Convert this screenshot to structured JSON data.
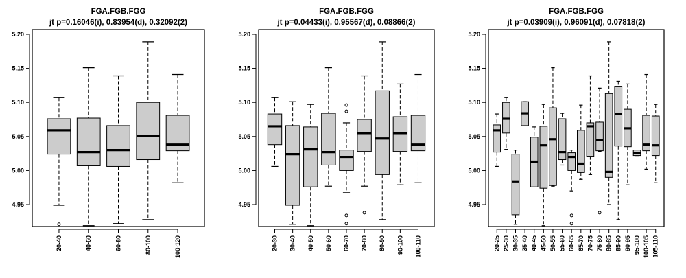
{
  "chart_data": [
    {
      "type": "box",
      "title": "FGA.FGB.FGG",
      "subtitle": "jt p=0.16046(i), 0.83954(d), 0.32092(2)",
      "ylim": [
        4.91,
        5.2
      ],
      "yticks": [
        4.95,
        5.0,
        5.05,
        5.1,
        5.15,
        5.2
      ],
      "ytick_labels": [
        "4.95",
        "5.00",
        "5.05",
        "5.10",
        "5.15",
        "5.20"
      ],
      "categories": [
        "20-40",
        "40-60",
        "60-80",
        "80-100",
        "100-120"
      ],
      "boxes": [
        {
          "whislo": 4.949,
          "q1": 5.024,
          "med": 5.059,
          "q3": 5.076,
          "whishi": 5.107,
          "fliers": [
            4.921
          ]
        },
        {
          "whislo": 4.919,
          "q1": 5.007,
          "med": 5.027,
          "q3": 5.077,
          "whishi": 5.151,
          "fliers": []
        },
        {
          "whislo": 4.922,
          "q1": 5.006,
          "med": 5.03,
          "q3": 5.066,
          "whishi": 5.139,
          "fliers": []
        },
        {
          "whislo": 4.928,
          "q1": 5.016,
          "med": 5.051,
          "q3": 5.1,
          "whishi": 5.189,
          "fliers": []
        },
        {
          "whislo": 4.982,
          "q1": 5.029,
          "med": 5.038,
          "q3": 5.081,
          "whishi": 5.141,
          "fliers": []
        }
      ]
    },
    {
      "type": "box",
      "title": "FGA.FGB.FGG",
      "subtitle": "jt p=0.04433(i), 0.95567(d), 0.08866(2)",
      "ylim": [
        4.91,
        5.2
      ],
      "yticks": [
        4.95,
        5.0,
        5.05,
        5.1,
        5.15,
        5.2
      ],
      "ytick_labels": [
        "4.95",
        "5.00",
        "5.05",
        "5.10",
        "5.15",
        "5.20"
      ],
      "categories": [
        "20-30",
        "30-40",
        "40-50",
        "50-60",
        "60-70",
        "70-80",
        "80-90",
        "90-100",
        "100-110"
      ],
      "boxes": [
        {
          "whislo": 5.006,
          "q1": 5.038,
          "med": 5.065,
          "q3": 5.083,
          "whishi": 5.107,
          "fliers": []
        },
        {
          "whislo": 4.921,
          "q1": 4.949,
          "med": 5.024,
          "q3": 5.066,
          "whishi": 5.101,
          "fliers": []
        },
        {
          "whislo": 4.919,
          "q1": 4.976,
          "med": 5.031,
          "q3": 5.064,
          "whishi": 5.097,
          "fliers": []
        },
        {
          "whislo": 4.977,
          "q1": 5.008,
          "med": 5.027,
          "q3": 5.084,
          "whishi": 5.151,
          "fliers": []
        },
        {
          "whislo": 4.968,
          "q1": 5.0,
          "med": 5.02,
          "q3": 5.03,
          "whishi": 5.07,
          "fliers": [
            5.096,
            5.087,
            4.934,
            4.922
          ]
        },
        {
          "whislo": 4.977,
          "q1": 5.028,
          "med": 5.055,
          "q3": 5.075,
          "whishi": 5.139,
          "fliers": [
            4.938
          ]
        },
        {
          "whislo": 4.928,
          "q1": 4.994,
          "med": 5.047,
          "q3": 5.117,
          "whishi": 5.189,
          "fliers": []
        },
        {
          "whislo": 4.979,
          "q1": 5.028,
          "med": 5.055,
          "q3": 5.079,
          "whishi": 5.127,
          "fliers": []
        },
        {
          "whislo": 4.982,
          "q1": 5.029,
          "med": 5.038,
          "q3": 5.081,
          "whishi": 5.141,
          "fliers": []
        }
      ]
    },
    {
      "type": "box",
      "title": "FGA.FGB.FGG",
      "subtitle": "jt p=0.03909(i), 0.96091(d), 0.07818(2)",
      "ylim": [
        4.91,
        5.2
      ],
      "yticks": [
        4.95,
        5.0,
        5.05,
        5.1,
        5.15,
        5.2
      ],
      "ytick_labels": [
        "4.95",
        "5.00",
        "5.05",
        "5.10",
        "5.15",
        "5.20"
      ],
      "categories": [
        "20-25",
        "25-30",
        "30-35",
        "35-40",
        "40-45",
        "45-50",
        "50-55",
        "55-60",
        "60-65",
        "65-70",
        "70-75",
        "75-80",
        "80-85",
        "85-90",
        "90-95",
        "95-100",
        "100-105",
        "105-110"
      ],
      "boxes": [
        {
          "whislo": 5.006,
          "q1": 5.027,
          "med": 5.059,
          "q3": 5.067,
          "whishi": 5.083,
          "fliers": []
        },
        {
          "whislo": 5.031,
          "q1": 5.055,
          "med": 5.076,
          "q3": 5.1,
          "whishi": 5.107,
          "fliers": []
        },
        {
          "whislo": 4.921,
          "q1": 4.935,
          "med": 4.984,
          "q3": 5.024,
          "whishi": 5.03,
          "fliers": []
        },
        {
          "whislo": 5.066,
          "q1": 5.066,
          "med": 5.084,
          "q3": 5.101,
          "whishi": 5.101,
          "fliers": []
        },
        {
          "whislo": 4.976,
          "q1": 4.976,
          "med": 5.013,
          "q3": 5.049,
          "whishi": 5.064,
          "fliers": []
        },
        {
          "whislo": 4.919,
          "q1": 4.974,
          "med": 5.037,
          "q3": 5.065,
          "whishi": 5.097,
          "fliers": []
        },
        {
          "whislo": 4.977,
          "q1": 4.978,
          "med": 5.046,
          "q3": 5.092,
          "whishi": 5.151,
          "fliers": []
        },
        {
          "whislo": 5.008,
          "q1": 5.016,
          "med": 5.027,
          "q3": 5.076,
          "whishi": 5.084,
          "fliers": []
        },
        {
          "whislo": 4.97,
          "q1": 5.0,
          "med": 5.02,
          "q3": 5.026,
          "whishi": 5.03,
          "fliers": [
            4.934,
            4.922
          ]
        },
        {
          "whislo": 4.987,
          "q1": 4.997,
          "med": 5.01,
          "q3": 5.059,
          "whishi": 5.096,
          "fliers": []
        },
        {
          "whislo": 4.994,
          "q1": 5.021,
          "med": 5.065,
          "q3": 5.07,
          "whishi": 5.139,
          "fliers": []
        },
        {
          "whislo": 5.028,
          "q1": 5.029,
          "med": 5.045,
          "q3": 5.071,
          "whishi": 5.121,
          "fliers": [
            4.938
          ]
        },
        {
          "whislo": 4.95,
          "q1": 4.99,
          "med": 4.998,
          "q3": 5.113,
          "whishi": 5.189,
          "fliers": []
        },
        {
          "whislo": 4.928,
          "q1": 5.036,
          "med": 5.083,
          "q3": 5.123,
          "whishi": 5.131,
          "fliers": []
        },
        {
          "whislo": 4.979,
          "q1": 5.035,
          "med": 5.062,
          "q3": 5.09,
          "whishi": 5.127,
          "fliers": []
        },
        {
          "whislo": 5.022,
          "q1": 5.022,
          "med": 5.026,
          "q3": 5.03,
          "whishi": 5.03,
          "fliers": []
        },
        {
          "whislo": 5.002,
          "q1": 5.029,
          "med": 5.038,
          "q3": 5.081,
          "whishi": 5.141,
          "fliers": []
        },
        {
          "whislo": 4.982,
          "q1": 5.022,
          "med": 5.037,
          "q3": 5.08,
          "whishi": 5.097,
          "fliers": []
        }
      ]
    }
  ],
  "colors": {
    "box_fill": "#cccccc",
    "stroke": "#000000",
    "background": "#ffffff"
  }
}
